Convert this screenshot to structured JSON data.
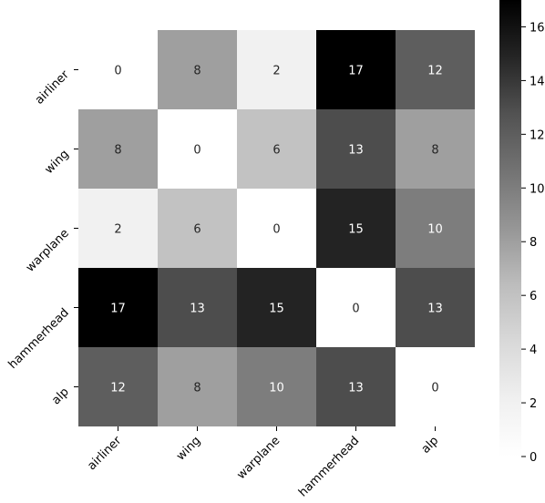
{
  "chart_data": {
    "type": "heatmap",
    "title": "",
    "xlabel": "",
    "ylabel": "",
    "x_categories": [
      "airliner",
      "wing",
      "warplane",
      "hammerhead",
      "alp"
    ],
    "y_categories": [
      "airliner",
      "wing",
      "warplane",
      "hammerhead",
      "alp"
    ],
    "values": [
      [
        0,
        8,
        2,
        17,
        12
      ],
      [
        8,
        0,
        6,
        13,
        8
      ],
      [
        2,
        6,
        0,
        15,
        10
      ],
      [
        17,
        13,
        15,
        0,
        13
      ],
      [
        12,
        8,
        10,
        13,
        0
      ]
    ],
    "colormap": "Greys",
    "color_low": "#ffffff",
    "color_high": "#000000",
    "vmin": 0,
    "vmax": 17,
    "colorbar_ticks": [
      0,
      2,
      4,
      6,
      8,
      10,
      12,
      14,
      16
    ],
    "colorbar_position": "right",
    "annotations": true,
    "grid": false
  }
}
